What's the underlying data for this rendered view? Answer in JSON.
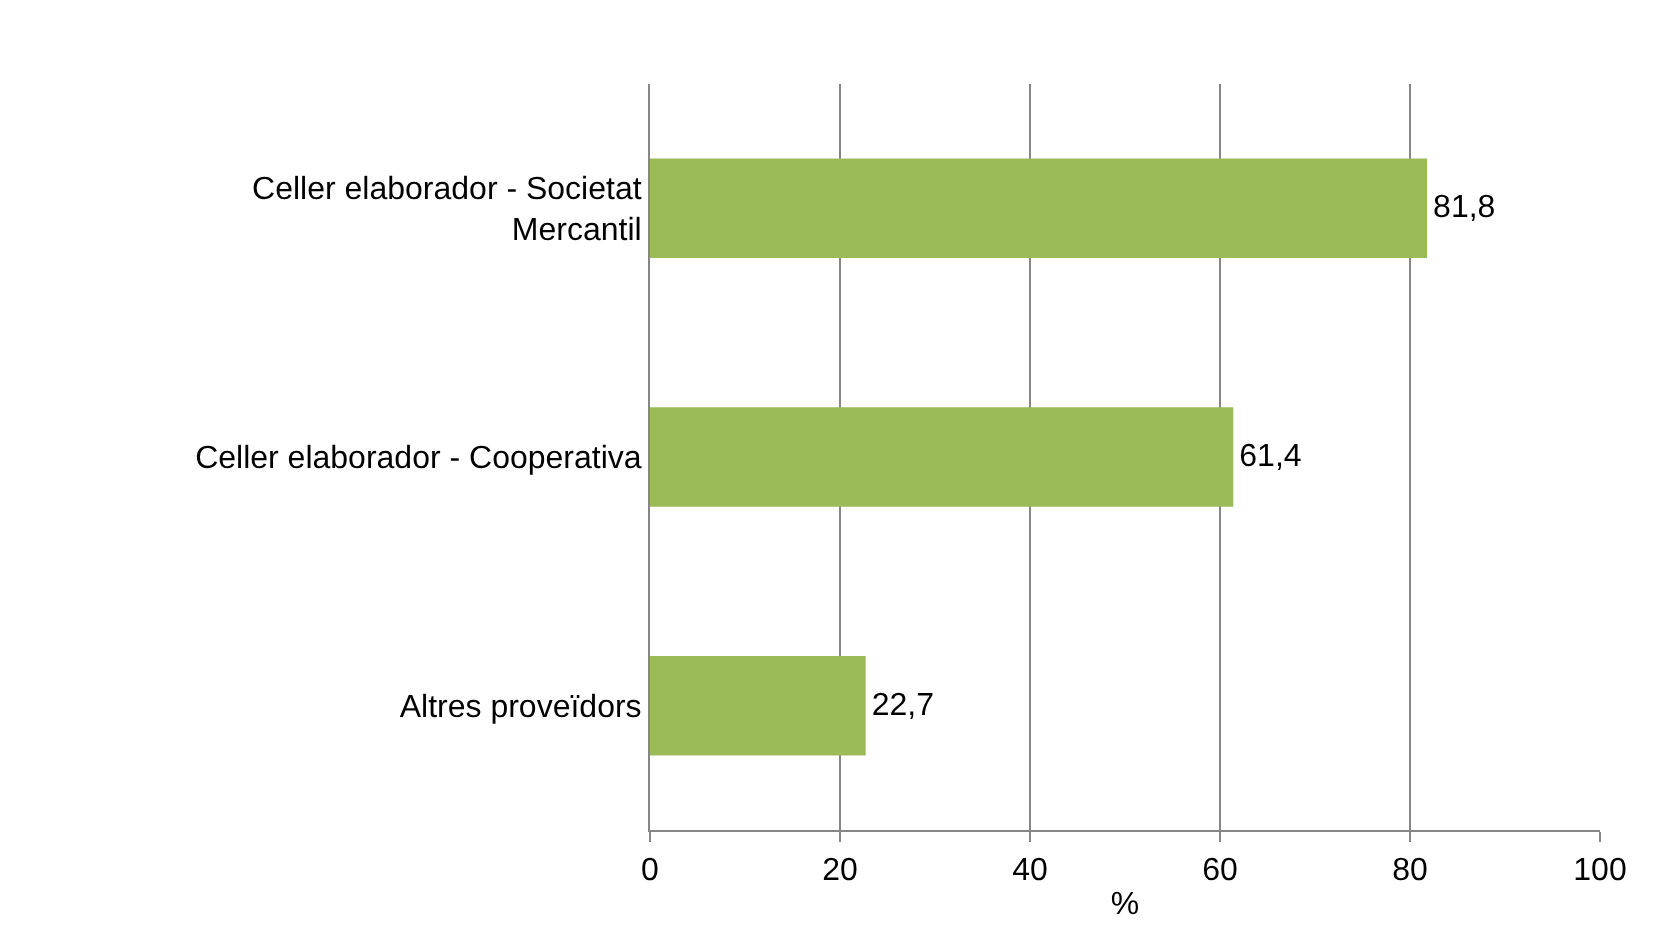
{
  "chart_data": {
    "type": "bar",
    "orientation": "horizontal",
    "categories": [
      "Celler elaborador - Societat\nMercantil",
      "Celler elaborador - Cooperativa",
      "Altres proveïdors"
    ],
    "values": [
      81.8,
      61.4,
      22.7
    ],
    "value_labels": [
      "81,8",
      "61,4",
      "22,7"
    ],
    "color": "#9bbb59",
    "xlabel": "%",
    "xlim": [
      0,
      100
    ],
    "xticks": [
      0,
      20,
      40,
      60,
      80,
      100
    ],
    "grid": "x",
    "legend": false
  }
}
